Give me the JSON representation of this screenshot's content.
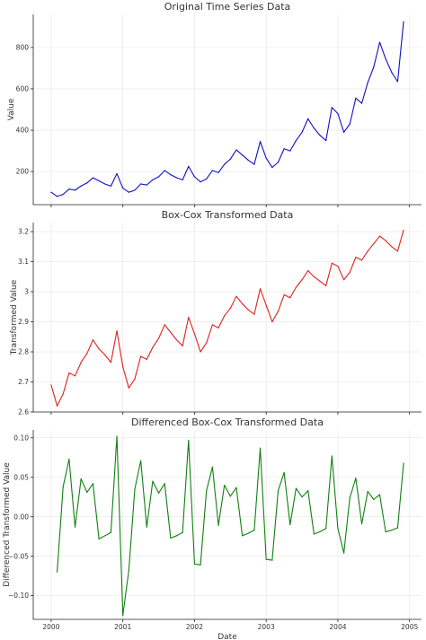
{
  "chart_data": [
    {
      "type": "line",
      "title": "Original Time Series Data",
      "xlabel": "",
      "ylabel": "Value",
      "x_start": "2000-01",
      "x_ticks": [
        "2000",
        "2001",
        "2002",
        "2003",
        "2004",
        "2005"
      ],
      "y_ticks": [
        200,
        400,
        600,
        800
      ],
      "ylim": [
        40,
        960
      ],
      "color": "#1010c8",
      "grid": true,
      "series": [
        {
          "values": [
            100,
            80,
            90,
            115,
            110,
            130,
            145,
            170,
            155,
            140,
            130,
            190,
            120,
            100,
            110,
            140,
            135,
            160,
            175,
            205,
            185,
            170,
            160,
            225,
            175,
            150,
            165,
            205,
            195,
            235,
            260,
            305,
            280,
            255,
            235,
            345,
            265,
            220,
            245,
            310,
            300,
            350,
            390,
            455,
            410,
            375,
            350,
            510,
            480,
            390,
            430,
            555,
            530,
            630,
            705,
            825,
            745,
            680,
            635,
            925
          ]
        }
      ]
    },
    {
      "type": "line",
      "title": "Box-Cox Transformed Data",
      "xlabel": "",
      "ylabel": "Transformed Value",
      "x_start": "2000-01",
      "x_ticks": [
        "2000",
        "2001",
        "2002",
        "2003",
        "2004",
        "2005"
      ],
      "y_ticks": [
        2.6,
        2.7,
        2.8,
        2.9,
        3.0,
        3.1,
        3.2
      ],
      "ylim": [
        2.6,
        3.23
      ],
      "color": "#e02020",
      "grid": true,
      "series": [
        {
          "values": [
            2.69,
            2.62,
            2.66,
            2.73,
            2.72,
            2.765,
            2.795,
            2.84,
            2.81,
            2.79,
            2.765,
            2.87,
            2.75,
            2.68,
            2.71,
            2.785,
            2.775,
            2.815,
            2.845,
            2.89,
            2.865,
            2.84,
            2.82,
            2.915,
            2.86,
            2.8,
            2.83,
            2.89,
            2.88,
            2.92,
            2.945,
            2.985,
            2.96,
            2.94,
            2.925,
            3.01,
            2.955,
            2.9,
            2.935,
            2.99,
            2.98,
            3.015,
            3.04,
            3.07,
            3.05,
            3.035,
            3.02,
            3.095,
            3.085,
            3.04,
            3.065,
            3.115,
            3.105,
            3.135,
            3.16,
            3.185,
            3.17,
            3.15,
            3.135,
            3.205
          ]
        }
      ]
    },
    {
      "type": "line",
      "title": "Differenced Box-Cox Transformed Data",
      "xlabel": "Date",
      "ylabel": "Differenced Transformed Value",
      "x_start": "2000-02",
      "x_ticks": [
        "2000",
        "2001",
        "2002",
        "2003",
        "2004",
        "2005"
      ],
      "y_ticks": [
        -0.1,
        -0.05,
        0.0,
        0.05,
        0.1
      ],
      "y_tick_labels": [
        "−0.10",
        "−0.05",
        "0.00",
        "0.05",
        "0.10"
      ],
      "ylim": [
        -0.13,
        0.11
      ],
      "color": "#108010",
      "grid": true,
      "series": [
        {
          "values": [
            -0.07,
            0.038,
            0.073,
            -0.013,
            0.048,
            0.031,
            0.042,
            -0.028,
            -0.024,
            -0.02,
            0.102,
            -0.125,
            -0.068,
            0.035,
            0.071,
            -0.013,
            0.045,
            0.03,
            0.042,
            -0.027,
            -0.024,
            -0.02,
            0.097,
            -0.06,
            -0.061,
            0.033,
            0.063,
            -0.011,
            0.04,
            0.026,
            0.037,
            -0.024,
            -0.021,
            -0.017,
            0.087,
            -0.054,
            -0.055,
            0.033,
            0.056,
            -0.01,
            0.036,
            0.025,
            0.033,
            -0.022,
            -0.019,
            -0.015,
            0.077,
            -0.015,
            -0.046,
            0.024,
            0.049,
            -0.009,
            0.032,
            0.022,
            0.028,
            -0.019,
            -0.017,
            -0.014,
            0.068
          ]
        }
      ]
    }
  ]
}
